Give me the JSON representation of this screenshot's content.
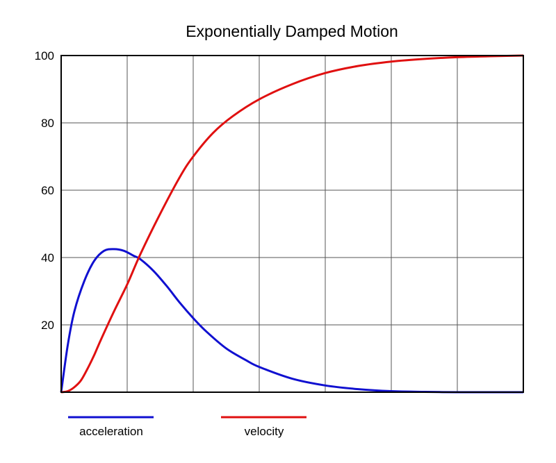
{
  "chart_data": {
    "type": "line",
    "title": "Exponentially Damped Motion",
    "xlabel": "",
    "ylabel": "",
    "xlim": [
      0,
      7
    ],
    "ylim": [
      0,
      100
    ],
    "yticks": [
      20,
      40,
      60,
      80,
      100
    ],
    "grid": true,
    "legend_position": "bottom-left",
    "series": [
      {
        "name": "acceleration",
        "color": "#1010d0",
        "x": [
          0,
          0.1,
          0.2,
          0.35,
          0.5,
          0.65,
          0.8,
          0.95,
          1.1,
          1.2,
          1.4,
          1.6,
          1.8,
          2.0,
          2.2,
          2.5,
          2.8,
          3.0,
          3.5,
          4.0,
          4.5,
          5.0,
          5.5,
          6.0,
          6.5,
          7.0
        ],
        "values": [
          0,
          14,
          24,
          33,
          39,
          42,
          42.5,
          42,
          40.5,
          39.5,
          36,
          31.5,
          26.5,
          22,
          18,
          13,
          9.5,
          7.5,
          4,
          2,
          0.9,
          0.3,
          0.1,
          0,
          0,
          0
        ]
      },
      {
        "name": "velocity",
        "color": "#e01010",
        "x": [
          0,
          0.1,
          0.2,
          0.3,
          0.4,
          0.5,
          0.6,
          0.8,
          1.0,
          1.2,
          1.5,
          1.8,
          2.0,
          2.3,
          2.6,
          3.0,
          3.5,
          4.0,
          4.5,
          5.0,
          5.5,
          6.0,
          6.5,
          7.0
        ],
        "values": [
          0,
          0.3,
          1.5,
          3.5,
          7,
          11,
          15.5,
          24,
          32,
          41,
          53,
          64,
          70,
          77,
          82,
          87,
          91.5,
          94.8,
          96.9,
          98.2,
          99,
          99.5,
          99.8,
          100
        ]
      }
    ]
  }
}
